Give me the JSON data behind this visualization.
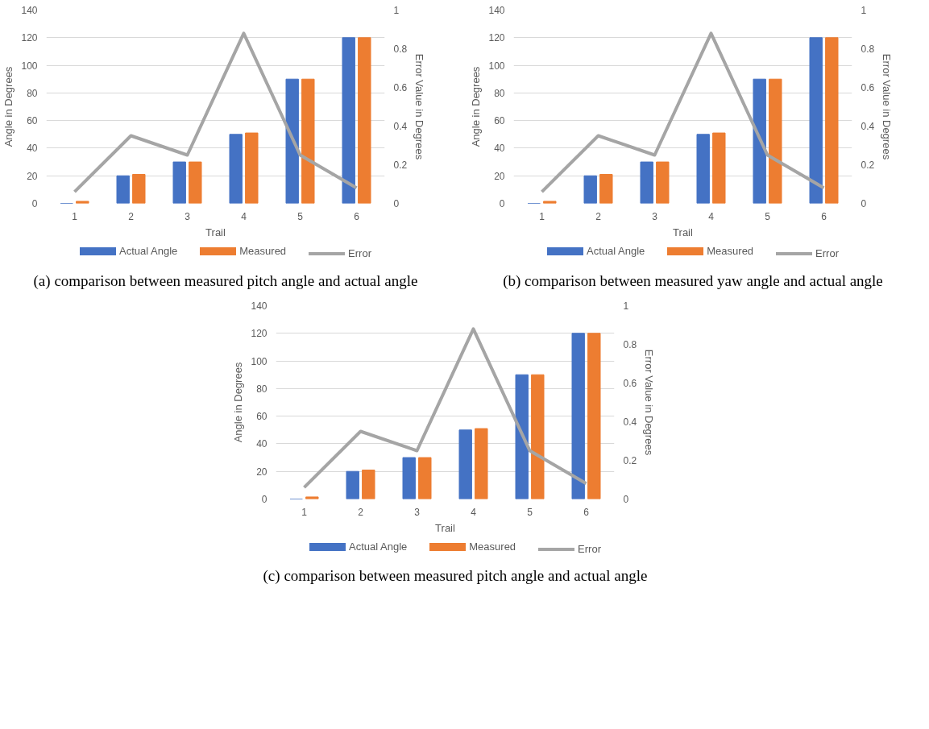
{
  "chart_data": [
    {
      "type": "bar",
      "title": "(a) comparison between measured pitch angle and actual angle",
      "xlabel": "Trail",
      "ylabel": "Angle in Degrees",
      "y2label": "Error Value in Degrees",
      "categories": [
        "1",
        "2",
        "3",
        "4",
        "5",
        "6"
      ],
      "series": [
        {
          "name": "Actual Angle",
          "color": "#4472c4",
          "values": [
            0,
            20,
            30,
            50,
            90,
            120
          ]
        },
        {
          "name": "Measured",
          "color": "#ed7d31",
          "values": [
            1.5,
            21,
            30,
            51,
            90,
            120
          ]
        },
        {
          "name": "Error",
          "type": "line",
          "axis": "y2",
          "color": "#a5a5a5",
          "values": [
            0.06,
            0.35,
            0.25,
            0.88,
            0.25,
            0.08
          ]
        }
      ],
      "ylim": [
        0,
        140
      ],
      "yticks": [
        0,
        20,
        40,
        60,
        80,
        100,
        120,
        140
      ],
      "y2lim": [
        0,
        1
      ],
      "y2ticks": [
        0,
        0.2,
        0.4,
        0.6,
        0.8,
        1
      ],
      "grid": "y",
      "legend": "bottom"
    },
    {
      "type": "bar",
      "title": "(b) comparison between measured yaw angle and actual angle",
      "xlabel": "Trail",
      "ylabel": "Angle in Degrees",
      "y2label": "Error Value in Degrees",
      "categories": [
        "1",
        "2",
        "3",
        "4",
        "5",
        "6"
      ],
      "series": [
        {
          "name": "Actual Angle",
          "color": "#4472c4",
          "values": [
            0,
            20,
            30,
            50,
            90,
            120
          ]
        },
        {
          "name": "Measured",
          "color": "#ed7d31",
          "values": [
            1.5,
            21,
            30,
            51,
            90,
            120
          ]
        },
        {
          "name": "Error",
          "type": "line",
          "axis": "y2",
          "color": "#a5a5a5",
          "values": [
            0.06,
            0.35,
            0.25,
            0.88,
            0.25,
            0.08
          ]
        }
      ],
      "ylim": [
        0,
        140
      ],
      "yticks": [
        0,
        20,
        40,
        60,
        80,
        100,
        120,
        140
      ],
      "y2lim": [
        0,
        1
      ],
      "y2ticks": [
        0,
        0.2,
        0.4,
        0.6,
        0.8,
        1
      ],
      "grid": "y",
      "legend": "bottom"
    },
    {
      "type": "bar",
      "title": "(c) comparison between measured pitch angle and actual angle",
      "xlabel": "Trail",
      "ylabel": "Angle in Degrees",
      "y2label": "Error Value in Degrees",
      "categories": [
        "1",
        "2",
        "3",
        "4",
        "5",
        "6"
      ],
      "series": [
        {
          "name": "Actual Angle",
          "color": "#4472c4",
          "values": [
            0,
            20,
            30,
            50,
            90,
            120
          ]
        },
        {
          "name": "Measured",
          "color": "#ed7d31",
          "values": [
            1.5,
            21,
            30,
            51,
            90,
            120
          ]
        },
        {
          "name": "Error",
          "type": "line",
          "axis": "y2",
          "color": "#a5a5a5",
          "values": [
            0.06,
            0.35,
            0.25,
            0.88,
            0.25,
            0.08
          ]
        }
      ],
      "ylim": [
        0,
        140
      ],
      "yticks": [
        0,
        20,
        40,
        60,
        80,
        100,
        120,
        140
      ],
      "y2lim": [
        0,
        1
      ],
      "y2ticks": [
        0,
        0.2,
        0.4,
        0.6,
        0.8,
        1
      ],
      "grid": "y",
      "legend": "bottom"
    }
  ]
}
